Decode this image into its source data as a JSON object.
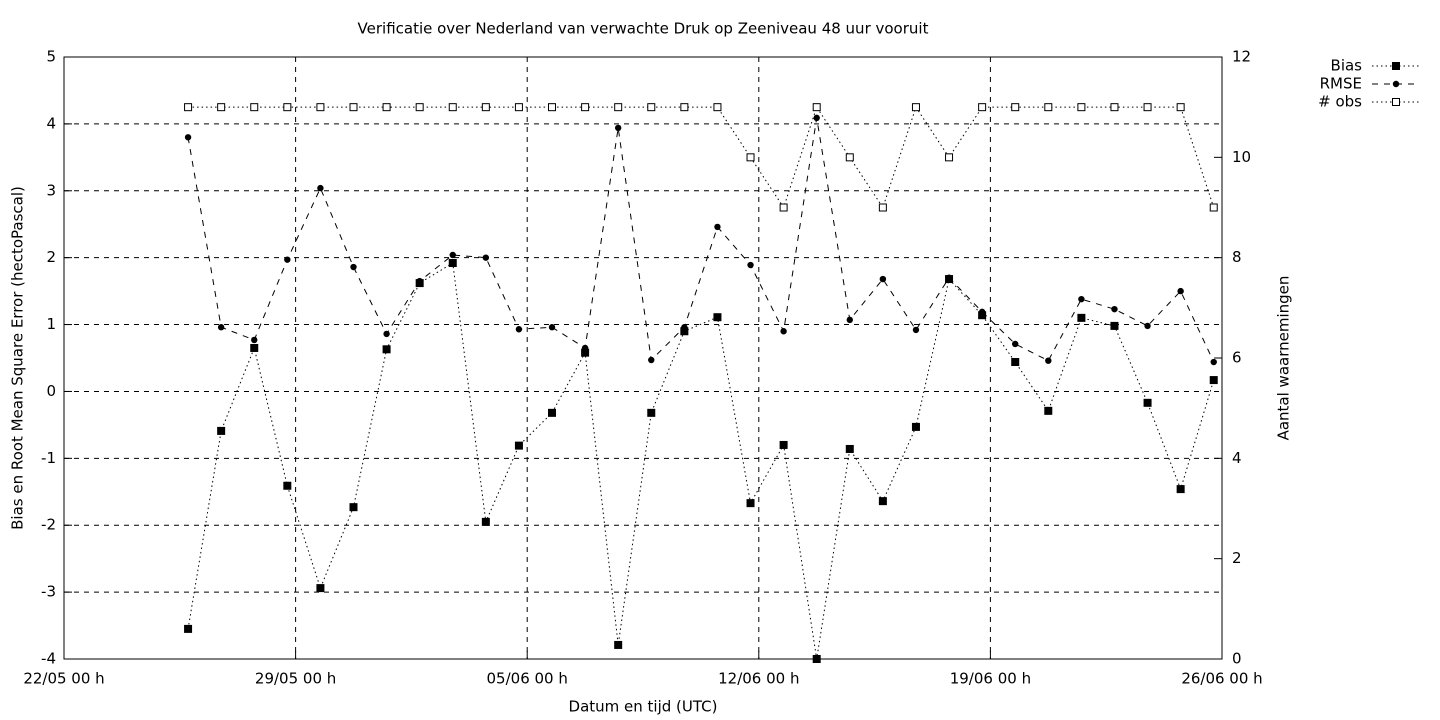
{
  "chart_data": {
    "type": "line",
    "title": "Verificatie over Nederland van verwachte Druk op Zeeniveau 48 uur vooruit",
    "xlabel": "Datum en tijd (UTC)",
    "ylabel": "Bias en Root Mean Square Error (hectoPascal)",
    "y2label": "Aantal waarnemingen",
    "x": [
      "25/05 18 h",
      "26/05 18 h",
      "27/05 18 h",
      "28/05 18 h",
      "29/05 18 h",
      "30/05 18 h",
      "31/05 18 h",
      "01/06 18 h",
      "02/06 18 h",
      "03/06 18 h",
      "04/06 18 h",
      "05/06 18 h",
      "06/06 18 h",
      "07/06 18 h",
      "08/06 18 h",
      "09/06 18 h",
      "10/06 18 h",
      "11/06 18 h",
      "12/06 18 h",
      "13/06 18 h",
      "14/06 18 h",
      "15/06 18 h",
      "16/06 18 h",
      "17/06 18 h",
      "18/06 18 h",
      "19/06 18 h",
      "20/06 18 h",
      "21/06 18 h",
      "22/06 18 h",
      "23/06 18 h",
      "24/06 18 h",
      "25/06 18 h"
    ],
    "xlim": [
      "22/05 00 h",
      "26/06 00 h"
    ],
    "xticks": [
      "22/05 00 h",
      "29/05 00 h",
      "05/06 00 h",
      "12/06 00 h",
      "19/06 00 h",
      "26/06 00 h"
    ],
    "ylim": [
      -4,
      5
    ],
    "yticks": [
      -4,
      -3,
      -2,
      -1,
      0,
      1,
      2,
      3,
      4,
      5
    ],
    "y2lim": [
      0,
      12
    ],
    "y2ticks": [
      0,
      2,
      4,
      6,
      8,
      10,
      12
    ],
    "grid": true,
    "legend": "outside-top-right",
    "series": [
      {
        "name": "Bias",
        "color": "#000000",
        "line_style": "dotted",
        "marker": "filled-square",
        "values": [
          -3.55,
          -0.59,
          0.65,
          -1.41,
          -2.94,
          -1.73,
          0.63,
          1.62,
          1.92,
          -1.95,
          -0.81,
          -0.32,
          0.58,
          -3.79,
          -0.32,
          0.9,
          1.11,
          -1.67,
          -0.8,
          -4.0,
          -0.86,
          -1.64,
          -0.53,
          1.68,
          1.14,
          0.44,
          -0.29,
          1.1,
          0.98,
          -0.17,
          -1.46,
          0.17
        ]
      },
      {
        "name": "RMSE",
        "color": "#000000",
        "line_style": "dashed",
        "marker": "filled-circle",
        "values": [
          3.8,
          0.96,
          0.77,
          1.97,
          3.04,
          1.86,
          0.86,
          1.65,
          2.04,
          2.0,
          0.93,
          0.96,
          0.65,
          3.94,
          0.47,
          0.96,
          2.46,
          1.89,
          0.9,
          4.09,
          1.07,
          1.68,
          0.92,
          1.7,
          1.19,
          0.71,
          0.46,
          1.38,
          1.23,
          0.98,
          1.5,
          0.44
        ]
      },
      {
        "name": "# obs",
        "color": "#000000",
        "line_style": "dotted",
        "marker": "open-square",
        "axis": "y2",
        "values": [
          11,
          11,
          11,
          11,
          11,
          11,
          11,
          11,
          11,
          11,
          11,
          11,
          11,
          11,
          11,
          11,
          11,
          10,
          9,
          11,
          10,
          9,
          11,
          10,
          11,
          11,
          11,
          11,
          11,
          11,
          11,
          9
        ]
      }
    ]
  }
}
